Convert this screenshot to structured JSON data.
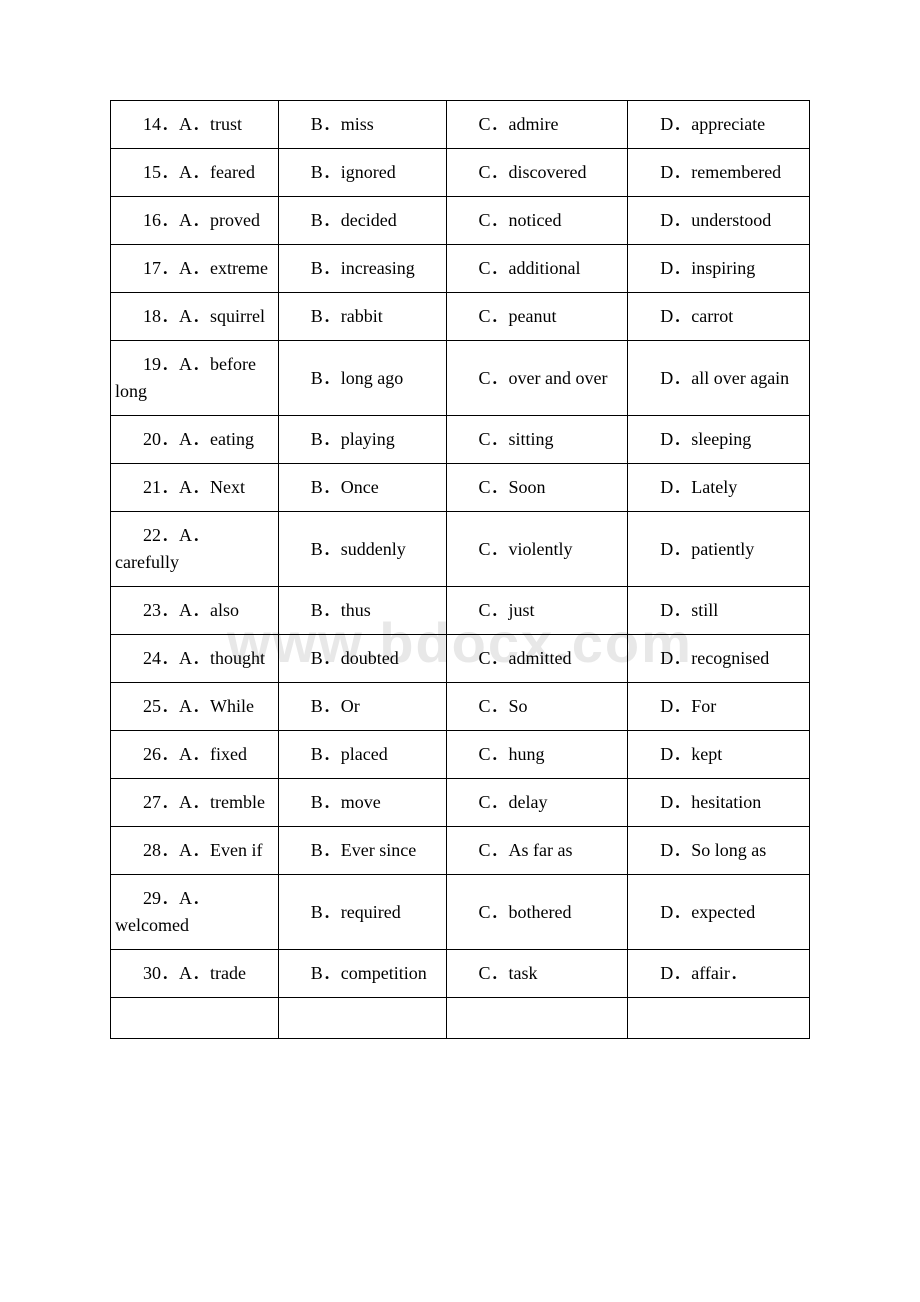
{
  "watermark": "www.bdocx.com",
  "rows": [
    {
      "n": "14",
      "a": "trust",
      "b": "miss",
      "c": "admire",
      "d": "appreciate"
    },
    {
      "n": "15",
      "a": "feared",
      "b": "ignored",
      "c": "discovered",
      "d": "remembered"
    },
    {
      "n": "16",
      "a": "proved",
      "b": "decided",
      "c": "noticed",
      "d": "understood"
    },
    {
      "n": "17",
      "a": "extreme",
      "b": "increasing",
      "c": "additional",
      "d": "inspiring"
    },
    {
      "n": "18",
      "a": "squirrel",
      "b": "rabbit",
      "c": "peanut",
      "d": "carrot"
    },
    {
      "n": "19",
      "a": "before long",
      "b": "long ago",
      "c": "over and over",
      "d": "all over again"
    },
    {
      "n": "20",
      "a": "eating",
      "b": "playing",
      "c": "sitting",
      "d": "sleeping"
    },
    {
      "n": "21",
      "a": "Next",
      "b": "Once",
      "c": "Soon",
      "d": "Lately"
    },
    {
      "n": "22",
      "a": "carefully",
      "b": "suddenly",
      "c": "violently",
      "d": "patiently"
    },
    {
      "n": "23",
      "a": "also",
      "b": "thus",
      "c": "just",
      "d": "still"
    },
    {
      "n": "24",
      "a": "thought",
      "b": "doubted",
      "c": "admitted",
      "d": "recognised"
    },
    {
      "n": "25",
      "a": "While",
      "b": "Or",
      "c": "So",
      "d": "For"
    },
    {
      "n": "26",
      "a": "fixed",
      "b": "placed",
      "c": "hung",
      "d": "kept"
    },
    {
      "n": "27",
      "a": "tremble",
      "b": "move",
      "c": "delay",
      "d": "hesitation"
    },
    {
      "n": "28",
      "a": "Even if",
      "b": "Ever since",
      "c": "As far as",
      "d": "So long as"
    },
    {
      "n": "29",
      "a": "welcomed",
      "b": "required",
      "c": "bothered",
      "d": "expected"
    },
    {
      "n": "30",
      "a": "trade",
      "b": "competition",
      "c": "task",
      "d": "affair．"
    }
  ]
}
